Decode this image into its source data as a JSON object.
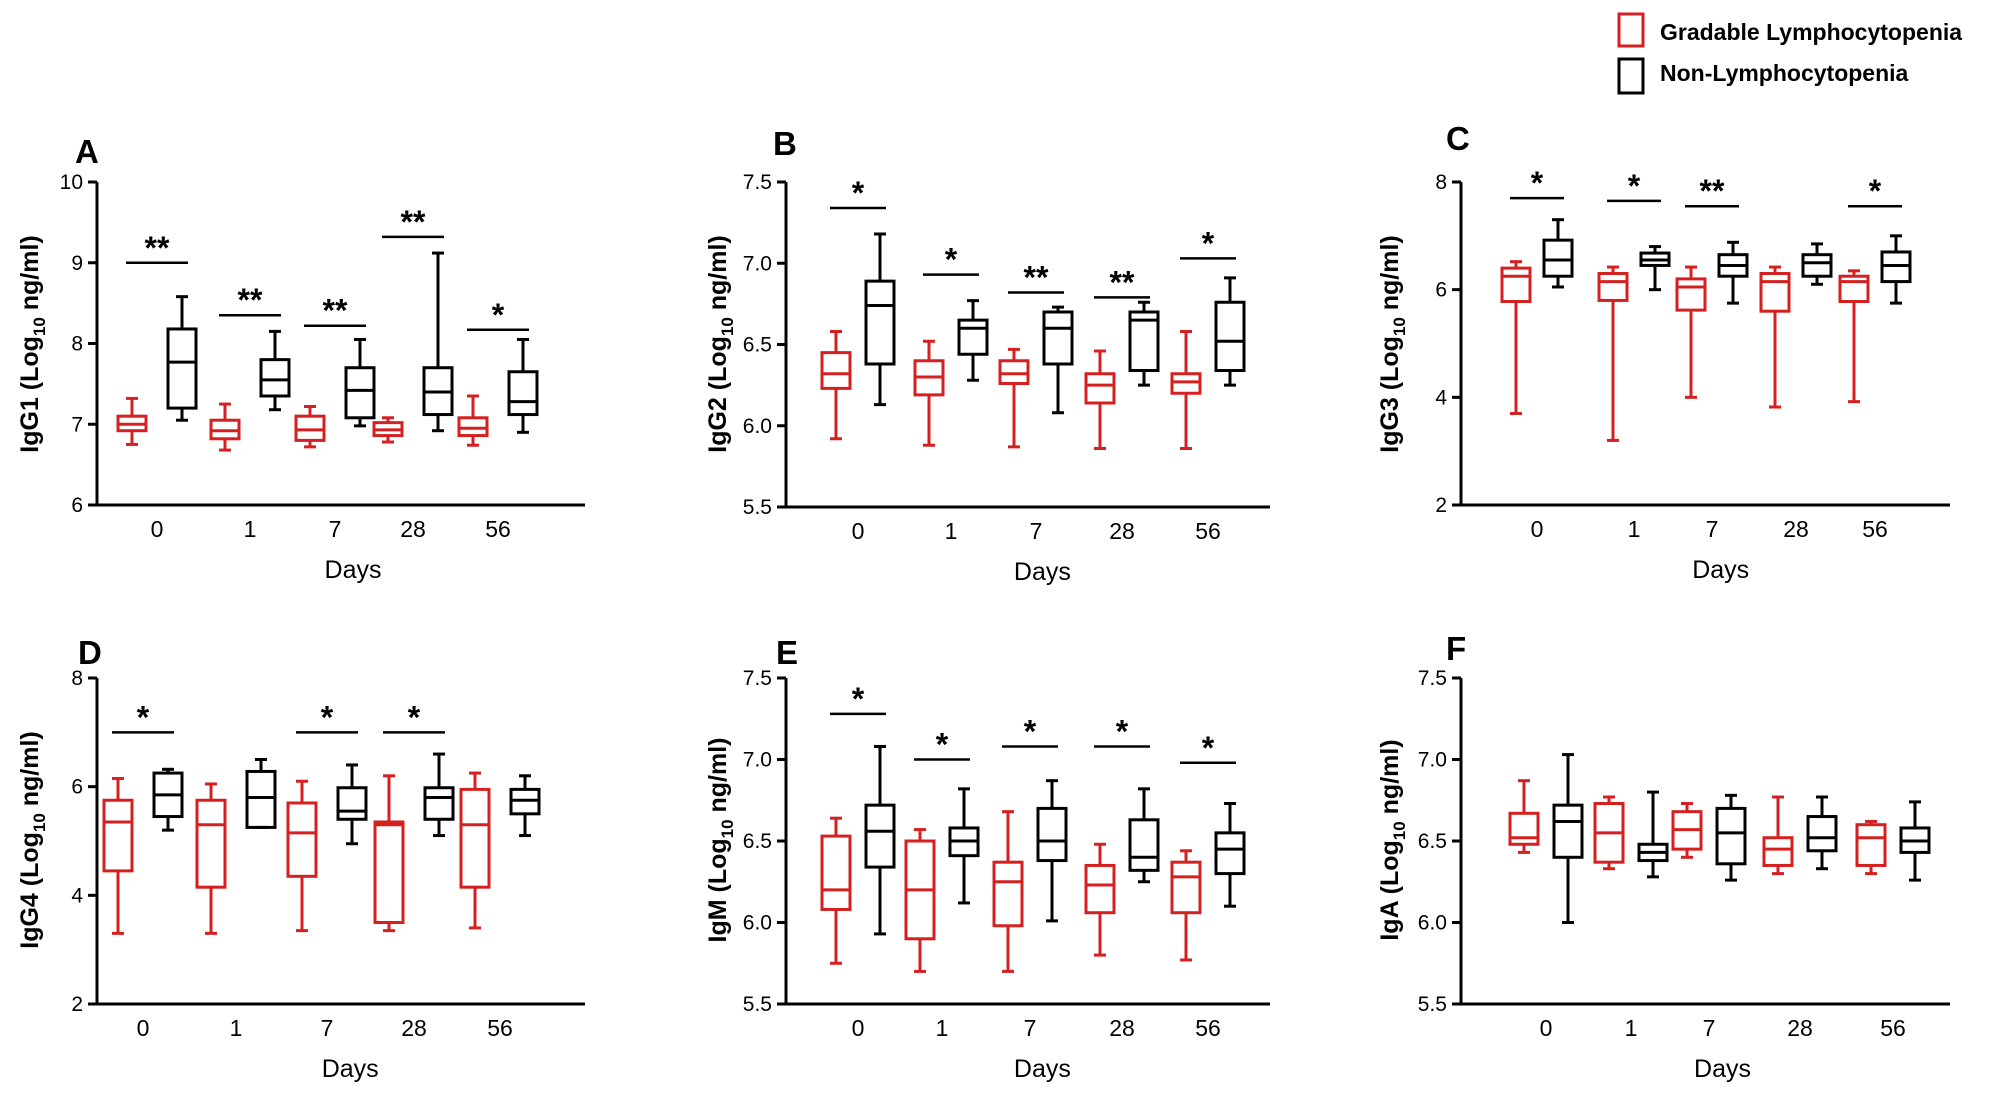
{
  "legend": {
    "items": [
      {
        "label": "Gradable Lymphocytopenia",
        "color": "#d42020"
      },
      {
        "label": "Non-Lymphocytopenia",
        "color": "#000000"
      }
    ]
  },
  "chart_data": [
    {
      "panel": "A",
      "type": "box",
      "ylabel_main": "IgG1 (Log",
      "ylabel_sub": "10",
      "ylabel_tail": " ng/ml)",
      "xlabel": "Days",
      "categories": [
        "0",
        "1",
        "7",
        "28",
        "56"
      ],
      "ylim": [
        6,
        10
      ],
      "yticks": [
        6,
        7,
        8,
        9,
        10
      ],
      "series": [
        {
          "name": "Gradable Lymphocytopenia",
          "color": "#d42020",
          "boxes": [
            {
              "min": 6.75,
              "q1": 6.92,
              "median": 7.0,
              "q3": 7.1,
              "max": 7.32
            },
            {
              "min": 6.68,
              "q1": 6.82,
              "median": 6.92,
              "q3": 7.05,
              "max": 7.25
            },
            {
              "min": 6.72,
              "q1": 6.8,
              "median": 6.93,
              "q3": 7.1,
              "max": 7.22
            },
            {
              "min": 6.78,
              "q1": 6.86,
              "median": 6.93,
              "q3": 7.02,
              "max": 7.08
            },
            {
              "min": 6.74,
              "q1": 6.86,
              "median": 6.95,
              "q3": 7.08,
              "max": 7.35
            }
          ]
        },
        {
          "name": "Non-Lymphocytopenia",
          "color": "#000000",
          "boxes": [
            {
              "min": 7.05,
              "q1": 7.2,
              "median": 7.77,
              "q3": 8.18,
              "max": 8.58
            },
            {
              "min": 7.18,
              "q1": 7.35,
              "median": 7.55,
              "q3": 7.8,
              "max": 8.15
            },
            {
              "min": 6.98,
              "q1": 7.08,
              "median": 7.42,
              "q3": 7.7,
              "max": 8.05
            },
            {
              "min": 6.92,
              "q1": 7.12,
              "median": 7.4,
              "q3": 7.7,
              "max": 9.12
            },
            {
              "min": 6.9,
              "q1": 7.12,
              "median": 7.28,
              "q3": 7.65,
              "max": 8.05
            }
          ]
        }
      ],
      "significance": [
        {
          "day": "0",
          "label": "**",
          "y": 9.0
        },
        {
          "day": "1",
          "label": "**",
          "y": 8.35
        },
        {
          "day": "7",
          "label": "**",
          "y": 8.22
        },
        {
          "day": "28",
          "label": "**",
          "y": 9.32
        },
        {
          "day": "56",
          "label": "*",
          "y": 8.17
        }
      ]
    },
    {
      "panel": "B",
      "type": "box",
      "ylabel_main": "IgG2 (Log",
      "ylabel_sub": "10",
      "ylabel_tail": " ng/ml)",
      "xlabel": "Days",
      "categories": [
        "0",
        "1",
        "7",
        "28",
        "56"
      ],
      "ylim": [
        5.5,
        7.5
      ],
      "yticks": [
        5.5,
        6.0,
        6.5,
        7.0,
        7.5
      ],
      "series": [
        {
          "name": "Gradable Lymphocytopenia",
          "color": "#d42020",
          "boxes": [
            {
              "min": 5.92,
              "q1": 6.23,
              "median": 6.32,
              "q3": 6.45,
              "max": 6.58
            },
            {
              "min": 5.88,
              "q1": 6.19,
              "median": 6.3,
              "q3": 6.4,
              "max": 6.52
            },
            {
              "min": 5.87,
              "q1": 6.26,
              "median": 6.32,
              "q3": 6.4,
              "max": 6.47
            },
            {
              "min": 5.86,
              "q1": 6.14,
              "median": 6.25,
              "q3": 6.32,
              "max": 6.46
            },
            {
              "min": 5.86,
              "q1": 6.2,
              "median": 6.27,
              "q3": 6.32,
              "max": 6.58
            }
          ]
        },
        {
          "name": "Non-Lymphocytopenia",
          "color": "#000000",
          "boxes": [
            {
              "min": 6.13,
              "q1": 6.38,
              "median": 6.74,
              "q3": 6.89,
              "max": 7.18
            },
            {
              "min": 6.28,
              "q1": 6.44,
              "median": 6.6,
              "q3": 6.65,
              "max": 6.77
            },
            {
              "min": 6.08,
              "q1": 6.38,
              "median": 6.6,
              "q3": 6.7,
              "max": 6.73
            },
            {
              "min": 6.25,
              "q1": 6.34,
              "median": 6.65,
              "q3": 6.7,
              "max": 6.76
            },
            {
              "min": 6.25,
              "q1": 6.34,
              "median": 6.52,
              "q3": 6.76,
              "max": 6.91
            }
          ]
        }
      ],
      "significance": [
        {
          "day": "0",
          "label": "*",
          "y": 7.34
        },
        {
          "day": "1",
          "label": "*",
          "y": 6.93
        },
        {
          "day": "7",
          "label": "**",
          "y": 6.82
        },
        {
          "day": "28",
          "label": "**",
          "y": 6.79
        },
        {
          "day": "56",
          "label": "*",
          "y": 7.03
        }
      ]
    },
    {
      "panel": "C",
      "type": "box",
      "ylabel_main": "IgG3 (Log",
      "ylabel_sub": "10",
      "ylabel_tail": " ng/ml)",
      "xlabel": "Days",
      "categories": [
        "0",
        "1",
        "7",
        "28",
        "56"
      ],
      "ylim": [
        2,
        8
      ],
      "yticks": [
        2,
        4,
        6,
        8
      ],
      "series": [
        {
          "name": "Gradable Lymphocytopenia",
          "color": "#d42020",
          "boxes": [
            {
              "min": 3.7,
              "q1": 5.78,
              "median": 6.25,
              "q3": 6.4,
              "max": 6.52
            },
            {
              "min": 3.2,
              "q1": 5.8,
              "median": 6.15,
              "q3": 6.3,
              "max": 6.42
            },
            {
              "min": 4.0,
              "q1": 5.62,
              "median": 6.05,
              "q3": 6.2,
              "max": 6.42
            },
            {
              "min": 3.82,
              "q1": 5.6,
              "median": 6.15,
              "q3": 6.3,
              "max": 6.42
            },
            {
              "min": 3.92,
              "q1": 5.78,
              "median": 6.15,
              "q3": 6.25,
              "max": 6.35
            }
          ]
        },
        {
          "name": "Non-Lymphocytopenia",
          "color": "#000000",
          "boxes": [
            {
              "min": 6.05,
              "q1": 6.25,
              "median": 6.55,
              "q3": 6.92,
              "max": 7.3
            },
            {
              "min": 6.0,
              "q1": 6.45,
              "median": 6.55,
              "q3": 6.68,
              "max": 6.8
            },
            {
              "min": 5.75,
              "q1": 6.25,
              "median": 6.45,
              "q3": 6.65,
              "max": 6.88
            },
            {
              "min": 6.1,
              "q1": 6.25,
              "median": 6.5,
              "q3": 6.65,
              "max": 6.85
            },
            {
              "min": 5.75,
              "q1": 6.15,
              "median": 6.45,
              "q3": 6.7,
              "max": 7.0
            }
          ]
        }
      ],
      "significance": [
        {
          "day": "0",
          "label": "*",
          "y": 7.7
        },
        {
          "day": "1",
          "label": "*",
          "y": 7.65
        },
        {
          "day": "7",
          "label": "**",
          "y": 7.55
        },
        {
          "day": "56",
          "label": "*",
          "y": 7.55
        }
      ]
    },
    {
      "panel": "D",
      "type": "box",
      "ylabel_main": "IgG4 (Log",
      "ylabel_sub": "10",
      "ylabel_tail": " ng/ml)",
      "xlabel": "Days",
      "categories": [
        "0",
        "1",
        "7",
        "28",
        "56"
      ],
      "ylim": [
        2,
        8
      ],
      "yticks": [
        2,
        4,
        6,
        8
      ],
      "series": [
        {
          "name": "Gradable Lymphocytopenia",
          "color": "#d42020",
          "boxes": [
            {
              "min": 3.3,
              "q1": 4.45,
              "median": 5.35,
              "q3": 5.75,
              "max": 6.15
            },
            {
              "min": 3.3,
              "q1": 4.15,
              "median": 5.3,
              "q3": 5.75,
              "max": 6.05
            },
            {
              "min": 3.35,
              "q1": 4.35,
              "median": 5.15,
              "q3": 5.7,
              "max": 6.1
            },
            {
              "min": 3.35,
              "q1": 3.5,
              "median": 5.3,
              "q3": 5.35,
              "max": 6.2
            },
            {
              "min": 3.4,
              "q1": 4.15,
              "median": 5.3,
              "q3": 5.95,
              "max": 6.25
            }
          ]
        },
        {
          "name": "Non-Lymphocytopenia",
          "color": "#000000",
          "boxes": [
            {
              "min": 5.2,
              "q1": 5.45,
              "median": 5.85,
              "q3": 6.25,
              "max": 6.32
            },
            {
              "min": 5.25,
              "q1": 5.25,
              "median": 5.8,
              "q3": 6.28,
              "max": 6.5
            },
            {
              "min": 4.95,
              "q1": 5.4,
              "median": 5.55,
              "q3": 5.98,
              "max": 6.4
            },
            {
              "min": 5.1,
              "q1": 5.4,
              "median": 5.8,
              "q3": 5.98,
              "max": 6.6
            },
            {
              "min": 5.1,
              "q1": 5.5,
              "median": 5.75,
              "q3": 5.95,
              "max": 6.2
            }
          ]
        }
      ],
      "significance": [
        {
          "day": "0",
          "label": "*",
          "y": 7.0
        },
        {
          "day": "7",
          "label": "*",
          "y": 7.0
        },
        {
          "day": "28",
          "label": "*",
          "y": 7.0
        }
      ]
    },
    {
      "panel": "E",
      "type": "box",
      "ylabel_main": "IgM (Log",
      "ylabel_sub": "10",
      "ylabel_tail": " ng/ml)",
      "xlabel": "Days",
      "categories": [
        "0",
        "1",
        "7",
        "28",
        "56"
      ],
      "ylim": [
        5.5,
        7.5
      ],
      "yticks": [
        5.5,
        6.0,
        6.5,
        7.0,
        7.5
      ],
      "series": [
        {
          "name": "Gradable Lymphocytopenia",
          "color": "#d42020",
          "boxes": [
            {
              "min": 5.75,
              "q1": 6.08,
              "median": 6.2,
              "q3": 6.53,
              "max": 6.64
            },
            {
              "min": 5.7,
              "q1": 5.9,
              "median": 6.2,
              "q3": 6.5,
              "max": 6.57
            },
            {
              "min": 5.7,
              "q1": 5.98,
              "median": 6.25,
              "q3": 6.37,
              "max": 6.68
            },
            {
              "min": 5.8,
              "q1": 6.06,
              "median": 6.23,
              "q3": 6.35,
              "max": 6.48
            },
            {
              "min": 5.77,
              "q1": 6.06,
              "median": 6.28,
              "q3": 6.37,
              "max": 6.44
            }
          ]
        },
        {
          "name": "Non-Lymphocytopenia",
          "color": "#000000",
          "boxes": [
            {
              "min": 5.93,
              "q1": 6.34,
              "median": 6.56,
              "q3": 6.72,
              "max": 7.08
            },
            {
              "min": 6.12,
              "q1": 6.41,
              "median": 6.5,
              "q3": 6.58,
              "max": 6.82
            },
            {
              "min": 6.01,
              "q1": 6.38,
              "median": 6.5,
              "q3": 6.7,
              "max": 6.87
            },
            {
              "min": 6.25,
              "q1": 6.32,
              "median": 6.4,
              "q3": 6.63,
              "max": 6.82
            },
            {
              "min": 6.1,
              "q1": 6.3,
              "median": 6.45,
              "q3": 6.55,
              "max": 6.73
            }
          ]
        }
      ],
      "significance": [
        {
          "day": "0",
          "label": "*",
          "y": 7.28
        },
        {
          "day": "1",
          "label": "*",
          "y": 7.0
        },
        {
          "day": "7",
          "label": "*",
          "y": 7.08
        },
        {
          "day": "28",
          "label": "*",
          "y": 7.08
        },
        {
          "day": "56",
          "label": "*",
          "y": 6.98
        }
      ]
    },
    {
      "panel": "F",
      "type": "box",
      "ylabel_main": "IgA (Log",
      "ylabel_sub": "10",
      "ylabel_tail": " ng/ml)",
      "xlabel": "Days",
      "categories": [
        "0",
        "1",
        "7",
        "28",
        "56"
      ],
      "ylim": [
        5.5,
        7.5
      ],
      "yticks": [
        5.5,
        6.0,
        6.5,
        7.0,
        7.5
      ],
      "series": [
        {
          "name": "Gradable Lymphocytopenia",
          "color": "#d42020",
          "boxes": [
            {
              "min": 6.43,
              "q1": 6.48,
              "median": 6.52,
              "q3": 6.67,
              "max": 6.87
            },
            {
              "min": 6.33,
              "q1": 6.37,
              "median": 6.55,
              "q3": 6.73,
              "max": 6.77
            },
            {
              "min": 6.4,
              "q1": 6.45,
              "median": 6.57,
              "q3": 6.68,
              "max": 6.73
            },
            {
              "min": 6.3,
              "q1": 6.35,
              "median": 6.45,
              "q3": 6.52,
              "max": 6.77
            },
            {
              "min": 6.3,
              "q1": 6.35,
              "median": 6.52,
              "q3": 6.6,
              "max": 6.62
            }
          ]
        },
        {
          "name": "Non-Lymphocytopenia",
          "color": "#000000",
          "boxes": [
            {
              "min": 6.0,
              "q1": 6.4,
              "median": 6.62,
              "q3": 6.72,
              "max": 7.03
            },
            {
              "min": 6.28,
              "q1": 6.38,
              "median": 6.43,
              "q3": 6.48,
              "max": 6.8
            },
            {
              "min": 6.26,
              "q1": 6.36,
              "median": 6.55,
              "q3": 6.7,
              "max": 6.78
            },
            {
              "min": 6.33,
              "q1": 6.44,
              "median": 6.52,
              "q3": 6.65,
              "max": 6.77
            },
            {
              "min": 6.26,
              "q1": 6.43,
              "median": 6.5,
              "q3": 6.58,
              "max": 6.74
            }
          ]
        }
      ],
      "significance": []
    }
  ]
}
